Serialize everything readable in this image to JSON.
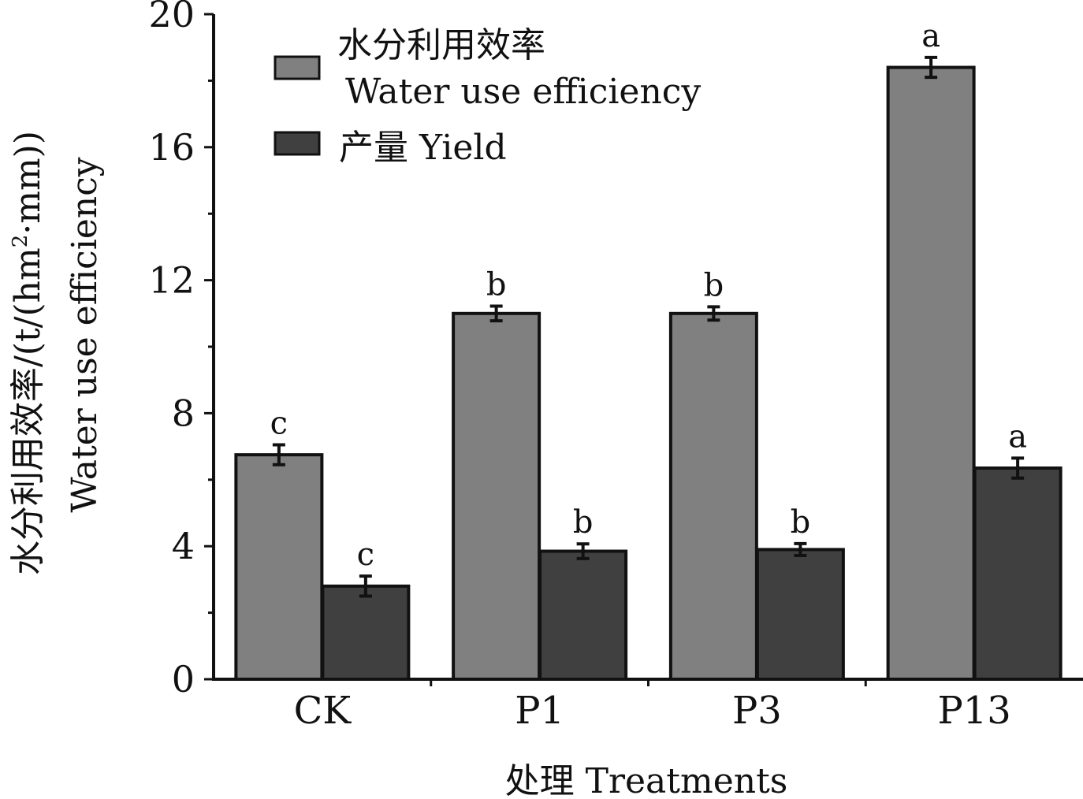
{
  "chart_data": {
    "type": "bar",
    "categories": [
      "CK",
      "P1",
      "P3",
      "P13"
    ],
    "series": [
      {
        "name_cn": "水分利用效率",
        "name_en": "Water use efficiency",
        "values": [
          6.75,
          11.0,
          11.0,
          18.4
        ],
        "errors": [
          0.3,
          0.22,
          0.2,
          0.3
        ],
        "labels": [
          "c",
          "b",
          "b",
          "a"
        ],
        "color": "#808080"
      },
      {
        "name": "产量 Yield",
        "values": [
          2.8,
          3.85,
          3.9,
          6.35
        ],
        "errors": [
          0.3,
          0.22,
          0.18,
          0.3
        ],
        "labels": [
          "c",
          "b",
          "b",
          "a"
        ],
        "color": "#404040"
      }
    ],
    "ylim": [
      0,
      20
    ],
    "yticks": [
      "0",
      "4",
      "8",
      "12",
      "16",
      "20"
    ],
    "ylabel_cn": "水分利用效率/(t/(hm",
    "ylabel_sup": "2",
    "ylabel_cn_tail": "·mm))",
    "ylabel_en": "Water use efficiency",
    "xlabel": "处理 Treatments",
    "legend_position": "top-left",
    "grid": false
  }
}
